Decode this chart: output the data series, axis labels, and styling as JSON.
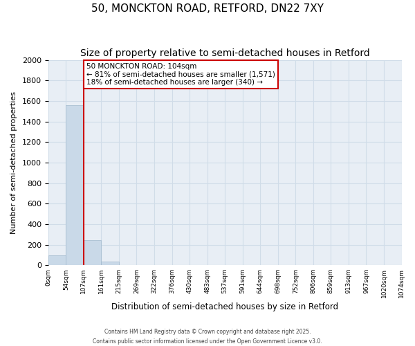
{
  "title_line1": "50, MONCKTON ROAD, RETFORD, DN22 7XY",
  "title_line2": "Size of property relative to semi-detached houses in Retford",
  "xlabel": "Distribution of semi-detached houses by size in Retford",
  "ylabel": "Number of semi-detached properties",
  "bar_values": [
    96,
    1562,
    245,
    35,
    0,
    0,
    0,
    0,
    0,
    0,
    0,
    0,
    0,
    0,
    0,
    0,
    0,
    0,
    0,
    0
  ],
  "bin_labels": [
    "0sqm",
    "54sqm",
    "107sqm",
    "161sqm",
    "215sqm",
    "269sqm",
    "322sqm",
    "376sqm",
    "430sqm",
    "483sqm",
    "537sqm",
    "591sqm",
    "644sqm",
    "698sqm",
    "752sqm",
    "806sqm",
    "859sqm",
    "913sqm",
    "967sqm",
    "1020sqm",
    "1074sqm"
  ],
  "bar_color": "#c9d9e8",
  "bar_edge_color": "#a0b8cc",
  "property_line_x": 1.5,
  "property_line_color": "#cc0000",
  "annotation_title": "50 MONCKTON ROAD: 104sqm",
  "annotation_line1": "← 81% of semi-detached houses are smaller (1,571)",
  "annotation_line2": "18% of semi-detached houses are larger (340) →",
  "annotation_box_color": "#cc0000",
  "ylim": [
    0,
    2000
  ],
  "yticks": [
    0,
    200,
    400,
    600,
    800,
    1000,
    1200,
    1400,
    1600,
    1800,
    2000
  ],
  "grid_color": "#d0dce8",
  "background_color": "#e8eef5",
  "footer_line1": "Contains HM Land Registry data © Crown copyright and database right 2025.",
  "footer_line2": "Contains public sector information licensed under the Open Government Licence v3.0.",
  "title_fontsize": 11,
  "subtitle_fontsize": 10
}
